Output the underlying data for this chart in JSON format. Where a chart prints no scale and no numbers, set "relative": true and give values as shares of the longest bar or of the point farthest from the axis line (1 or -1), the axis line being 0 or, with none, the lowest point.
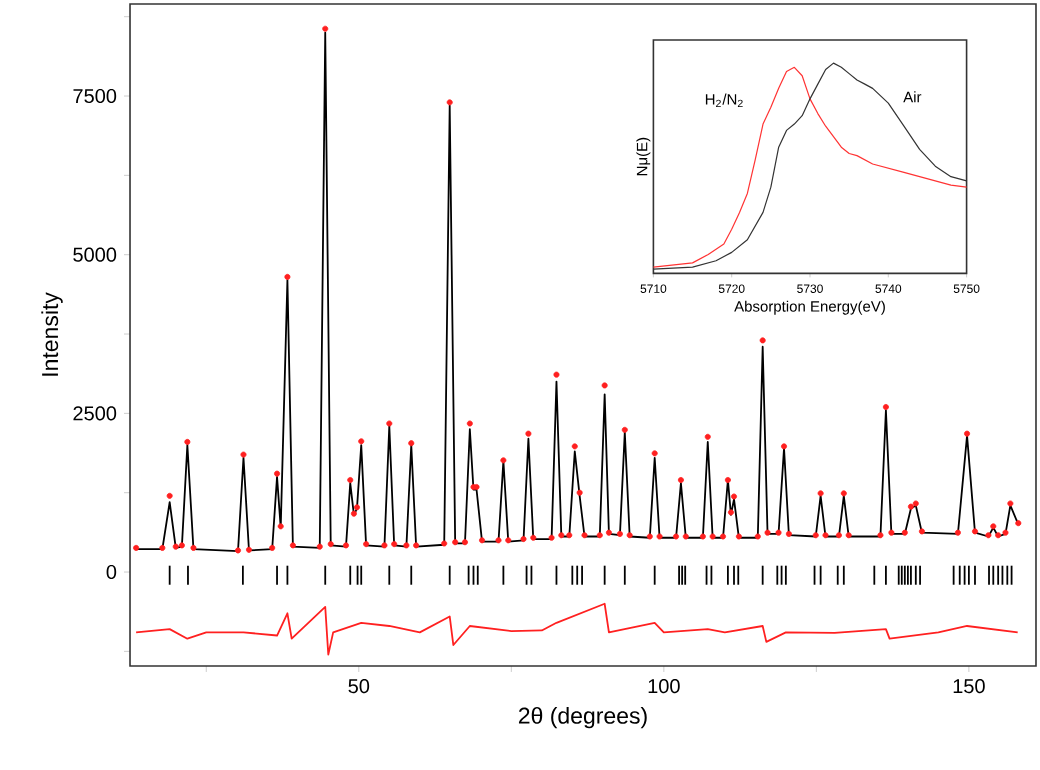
{
  "chart_data": [
    {
      "type": "line",
      "xlabel": "2θ (degrees)",
      "ylabel": "Intensity",
      "xlim": [
        12.5,
        161
      ],
      "ylim": [
        -1480,
        8950
      ],
      "xticks": [
        {
          "value": 25,
          "label": null
        },
        50,
        {
          "value": 75,
          "label": null
        },
        100,
        {
          "value": 125,
          "label": null
        },
        150
      ],
      "yticks": [
        {
          "value": -1250,
          "label": null
        },
        0,
        {
          "value": 1250,
          "label": null
        },
        2500,
        {
          "value": 3750,
          "label": null
        },
        5000,
        {
          "value": 6250,
          "label": null
        },
        7500,
        {
          "value": 8750,
          "label": null
        }
      ],
      "series": [
        {
          "type": "scatter",
          "marker": "circle",
          "color": "#ff2020",
          "x": [
            13.5,
            17.8,
            19.0,
            20.0,
            21.0,
            21.9,
            22.9,
            30.2,
            31.1,
            32.0,
            35.8,
            36.6,
            37.2,
            38.3,
            39.2,
            43.6,
            44.5,
            45.4,
            47.9,
            48.6,
            49.2,
            49.7,
            50.4,
            51.2,
            54.2,
            55.0,
            55.8,
            57.8,
            58.6,
            59.4,
            64.0,
            64.9,
            65.8,
            67.4,
            68.2,
            68.8,
            69.3,
            70.2,
            72.9,
            73.7,
            74.5,
            77.0,
            77.8,
            78.6,
            81.6,
            82.4,
            83.2,
            84.5,
            85.4,
            86.2,
            87.0,
            89.5,
            90.3,
            91.0,
            92.8,
            93.6,
            94.4,
            97.7,
            98.5,
            99.3,
            102.0,
            102.8,
            103.6,
            106.4,
            107.2,
            108.0,
            109.7,
            110.5,
            111.0,
            111.5,
            112.3,
            115.4,
            116.2,
            117.0,
            118.8,
            119.7,
            120.5,
            124.9,
            125.7,
            126.5,
            128.7,
            129.5,
            130.3,
            135.5,
            136.4,
            137.3,
            139.5,
            140.5,
            141.3,
            142.3,
            148.2,
            149.7,
            151.0,
            153.2,
            154.0,
            154.8,
            156.0,
            156.8,
            158.1
          ],
          "values": [
            380,
            380,
            1200,
            400,
            420,
            2050,
            380,
            340,
            1850,
            350,
            380,
            1550,
            720,
            4650,
            420,
            400,
            8560,
            440,
            420,
            1450,
            920,
            1020,
            2060,
            440,
            420,
            2340,
            440,
            420,
            2030,
            420,
            450,
            7400,
            470,
            470,
            2340,
            1340,
            1340,
            500,
            500,
            1760,
            500,
            520,
            2180,
            540,
            540,
            3110,
            580,
            580,
            1980,
            1250,
            580,
            580,
            2940,
            620,
            600,
            2240,
            580,
            560,
            1870,
            560,
            560,
            1450,
            560,
            560,
            2130,
            560,
            560,
            1450,
            940,
            1190,
            560,
            560,
            3650,
            620,
            620,
            1980,
            600,
            580,
            1240,
            580,
            580,
            1240,
            580,
            580,
            2600,
            620,
            620,
            1030,
            1080,
            640,
            620,
            2180,
            640,
            580,
            720,
            580,
            620,
            1080,
            770
          ]
        },
        {
          "type": "line",
          "color": "#000000",
          "x": [
            13.5,
            17.8,
            19.0,
            20.0,
            21.0,
            21.9,
            22.9,
            30.2,
            31.1,
            32.0,
            35.8,
            36.6,
            37.2,
            38.3,
            39.2,
            43.6,
            44.5,
            45.4,
            47.9,
            48.6,
            49.2,
            49.7,
            50.4,
            51.2,
            54.2,
            55.0,
            55.8,
            57.8,
            58.6,
            59.4,
            64.0,
            64.9,
            65.8,
            67.4,
            68.2,
            68.8,
            69.3,
            70.2,
            72.9,
            73.7,
            74.5,
            77.0,
            77.8,
            78.6,
            81.6,
            82.4,
            83.2,
            84.5,
            85.4,
            86.2,
            87.0,
            89.5,
            90.3,
            91.0,
            92.8,
            93.6,
            94.4,
            97.7,
            98.5,
            99.3,
            102.0,
            102.8,
            103.6,
            106.4,
            107.2,
            108.0,
            109.7,
            110.5,
            111.0,
            111.5,
            112.3,
            115.4,
            116.2,
            117.0,
            118.8,
            119.7,
            120.5,
            124.9,
            125.7,
            126.5,
            128.7,
            129.5,
            130.3,
            135.5,
            136.4,
            137.3,
            139.5,
            140.5,
            141.3,
            142.3,
            148.2,
            149.7,
            151.0,
            153.2,
            154.0,
            154.8,
            156.0,
            156.8,
            158.1
          ],
          "values": [
            360,
            360,
            1100,
            380,
            400,
            2000,
            360,
            330,
            1800,
            340,
            360,
            1500,
            700,
            4600,
            400,
            380,
            8500,
            420,
            400,
            1400,
            900,
            1000,
            2000,
            420,
            400,
            2300,
            420,
            400,
            2000,
            400,
            430,
            7350,
            450,
            450,
            2250,
            1300,
            1300,
            480,
            480,
            1750,
            480,
            500,
            2100,
            520,
            520,
            3000,
            560,
            560,
            1900,
            1200,
            560,
            560,
            2800,
            600,
            580,
            2200,
            560,
            540,
            1800,
            540,
            540,
            1400,
            540,
            540,
            2050,
            540,
            540,
            1450,
            900,
            1150,
            540,
            540,
            3550,
            600,
            600,
            1950,
            580,
            560,
            1200,
            560,
            560,
            1200,
            560,
            560,
            2550,
            600,
            600,
            1000,
            1050,
            620,
            600,
            2150,
            620,
            560,
            700,
            560,
            600,
            1050,
            750
          ]
        },
        {
          "type": "line",
          "color": "#ff2020",
          "x": [
            13.5,
            19.0,
            21.9,
            25,
            31.1,
            36.6,
            38.3,
            39.0,
            44.5,
            45.0,
            45.8,
            50.4,
            55.0,
            60,
            64.9,
            65.5,
            68.2,
            75,
            80,
            82.4,
            90.3,
            91.0,
            98.5,
            100,
            107.2,
            110,
            116.2,
            116.8,
            120,
            128,
            136.4,
            137,
            145,
            149.7,
            158
          ],
          "values": [
            -950,
            -900,
            -1050,
            -950,
            -950,
            -1000,
            -650,
            -1050,
            -550,
            -1300,
            -950,
            -800,
            -850,
            -950,
            -700,
            -1150,
            -850,
            -930,
            -920,
            -800,
            -500,
            -950,
            -800,
            -950,
            -900,
            -950,
            -850,
            -1100,
            -950,
            -960,
            -900,
            -1050,
            -950,
            -850,
            -950
          ]
        },
        {
          "type": "bar",
          "color": "#000000",
          "x": [
            19,
            22,
            31,
            36.6,
            38.3,
            44.5,
            48.6,
            49.8,
            50.4,
            55,
            58.6,
            64.9,
            68,
            68.8,
            69.5,
            73.7,
            77.5,
            78.3,
            82.4,
            85,
            85.8,
            86.6,
            90.3,
            93.6,
            98.5,
            102.5,
            103,
            103.5,
            107,
            107.8,
            110.5,
            111.5,
            112.2,
            116.2,
            118.6,
            119.3,
            120,
            124.7,
            125.7,
            128.5,
            129.5,
            134.5,
            136.4,
            138.5,
            139,
            139.5,
            140,
            140.5,
            141.3,
            142,
            147.5,
            148.5,
            149.3,
            150,
            151,
            153.3,
            154,
            154.8,
            155.5,
            156.3,
            157
          ],
          "base": [
            -200,
            -200,
            -200,
            -200,
            -200,
            -200,
            -200,
            -200,
            -200,
            -200,
            -200,
            -200,
            -200,
            -200,
            -200,
            -200,
            -200,
            -200,
            -200,
            -200,
            -200,
            -200,
            -200,
            -200,
            -200,
            -200,
            -200,
            -200,
            -200,
            -200,
            -200,
            -200,
            -200,
            -200,
            -200,
            -200,
            -200,
            -200,
            -200,
            -200,
            -200,
            -200,
            -200,
            -200,
            -200,
            -200,
            -200,
            -200,
            -200,
            -200,
            -200,
            -200,
            -200,
            -200,
            -200,
            -200,
            -200,
            -200,
            -200,
            -200,
            -200
          ],
          "values": [
            300,
            300,
            300,
            300,
            300,
            300,
            300,
            300,
            300,
            300,
            300,
            300,
            300,
            300,
            300,
            300,
            300,
            300,
            300,
            300,
            300,
            300,
            300,
            300,
            300,
            300,
            300,
            300,
            300,
            300,
            300,
            300,
            300,
            300,
            300,
            300,
            300,
            300,
            300,
            300,
            300,
            300,
            300,
            300,
            300,
            300,
            300,
            300,
            300,
            300,
            300,
            300,
            300,
            300,
            300,
            300,
            300,
            300,
            300,
            300,
            300
          ]
        }
      ]
    },
    {
      "type": "line",
      "xlabel": "Absorption Energy(eV)",
      "ylabel": "Nμ(E)",
      "relative": true,
      "tick_labels": "x",
      "xlim": [
        5710,
        5750
      ],
      "xticks": [
        5710,
        5720,
        5730,
        5740,
        5750
      ],
      "series": [
        {
          "name": "H$_{2}$/N$_{2}$",
          "color": "#ff3333",
          "x": [
            5710,
            5715,
            5717,
            5719,
            5720,
            5721,
            5722,
            5723,
            5724,
            5725,
            5726,
            5727,
            5728,
            5729,
            5730,
            5731,
            5732,
            5733,
            5734,
            5735,
            5736,
            5738,
            5740,
            5742,
            5744,
            5746,
            5748,
            5750
          ],
          "values": [
            0.03,
            0.05,
            0.09,
            0.14,
            0.21,
            0.29,
            0.38,
            0.54,
            0.71,
            0.79,
            0.88,
            0.96,
            0.98,
            0.94,
            0.83,
            0.76,
            0.7,
            0.65,
            0.6,
            0.57,
            0.56,
            0.52,
            0.5,
            0.48,
            0.46,
            0.44,
            0.42,
            0.41
          ]
        },
        {
          "name": "Air",
          "color": "#333333",
          "x": [
            5710,
            5715,
            5718,
            5720,
            5722,
            5724,
            5725,
            5726,
            5727,
            5728,
            5729,
            5730,
            5731,
            5732,
            5733,
            5734,
            5735,
            5736,
            5737,
            5738,
            5740,
            5742,
            5744,
            5746,
            5748,
            5750
          ],
          "values": [
            0.02,
            0.03,
            0.06,
            0.1,
            0.16,
            0.29,
            0.41,
            0.6,
            0.68,
            0.71,
            0.75,
            0.83,
            0.9,
            0.97,
            1.0,
            0.98,
            0.95,
            0.92,
            0.9,
            0.88,
            0.81,
            0.7,
            0.59,
            0.51,
            0.46,
            0.44
          ]
        }
      ]
    }
  ]
}
